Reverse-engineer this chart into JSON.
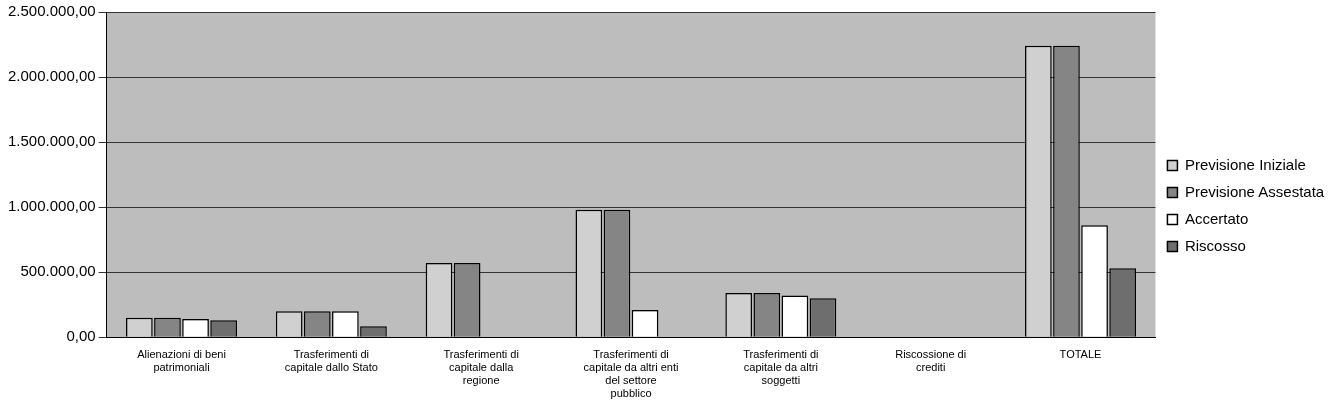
{
  "chart_data": {
    "type": "bar",
    "categories": [
      "Alienazioni di beni patrimoniali",
      "Trasferimenti di capitale dallo Stato",
      "Trasferimenti di capitale dalla regione",
      "Trasferimenti di capitale da altri enti del settore pubblico",
      "Trasferimenti di capitale da altri soggetti",
      "Riscossione di crediti",
      "TOTALE"
    ],
    "series": [
      {
        "name": "Previsione Iniziale",
        "color": "#d0d0d0",
        "values": [
          150000,
          200000,
          570000,
          980000,
          340000,
          0,
          2240000
        ]
      },
      {
        "name": "Previsione Assestata",
        "color": "#858585",
        "values": [
          150000,
          200000,
          570000,
          980000,
          340000,
          0,
          2240000
        ]
      },
      {
        "name": "Accertato",
        "color": "#ffffff",
        "values": [
          140000,
          200000,
          0,
          210000,
          320000,
          0,
          860000
        ]
      },
      {
        "name": "Riscosso",
        "color": "#6e6e6e",
        "values": [
          130000,
          85000,
          0,
          0,
          300000,
          0,
          530000
        ]
      }
    ],
    "ylim": [
      0,
      2500000
    ],
    "yticks": [
      {
        "value": 0,
        "label": "0,00"
      },
      {
        "value": 500000,
        "label": "500.000,00"
      },
      {
        "value": 1000000,
        "label": "1.000.000,00"
      },
      {
        "value": 1500000,
        "label": "1.500.000,00"
      },
      {
        "value": 2000000,
        "label": "2.000.000,00"
      },
      {
        "value": 2500000,
        "label": "2.500.000,00"
      }
    ],
    "grid": "y",
    "legend": "right"
  }
}
